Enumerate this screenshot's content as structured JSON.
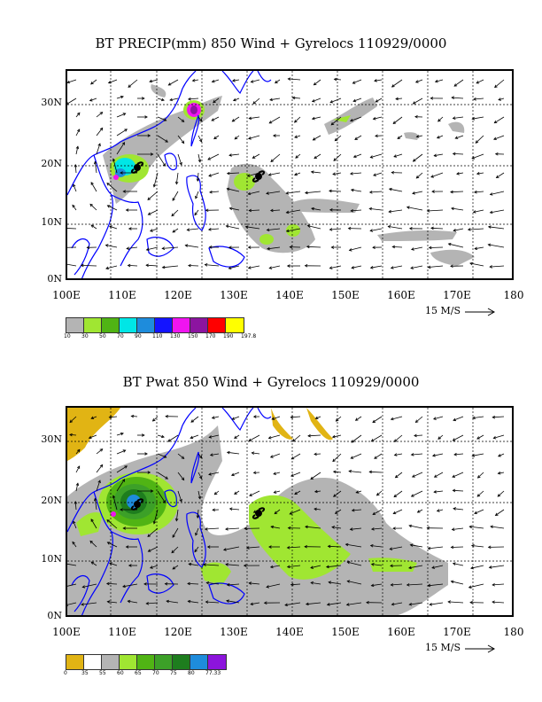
{
  "panels": [
    {
      "title": "BT PRECIP(mm) 850 Wind + Gyrelocs 110929/0000",
      "y_labels": [
        "30N",
        "20N",
        "10N",
        "0N"
      ],
      "x_labels": [
        "100E",
        "110E",
        "120E",
        "130E",
        "140E",
        "150E",
        "160E",
        "170E",
        "180"
      ],
      "scale_label": "15 M/S",
      "legend_colors": [
        "#b4b4b4",
        "#a0e632",
        "#50b414",
        "#00e6e6",
        "#1e8cdc",
        "#1414ff",
        "#f014f0",
        "#8c14a0",
        "#ff0000",
        "#ffff00"
      ],
      "legend_labels": [
        "10",
        "30",
        "50",
        "70",
        "90",
        "110",
        "130",
        "150",
        "170",
        "190",
        "197.8"
      ]
    },
    {
      "title": "BT Pwat 850 Wind + Gyrelocs 110929/0000",
      "y_labels": [
        "30N",
        "20N",
        "10N",
        "0N"
      ],
      "x_labels": [
        "100E",
        "110E",
        "120E",
        "130E",
        "140E",
        "150E",
        "160E",
        "170E",
        "180"
      ],
      "scale_label": "15 M/S",
      "legend_colors": [
        "#e1b414",
        "#ffffff",
        "#b4b4b4",
        "#a0e632",
        "#50b414",
        "#3ca028",
        "#1e7d1e",
        "#1e8cdc",
        "#8c14dc"
      ],
      "legend_labels": [
        "0",
        "35",
        "55",
        "60",
        "65",
        "70",
        "75",
        "80",
        "77.33"
      ]
    }
  ],
  "colors": {
    "coast": "#0000ff",
    "grid": "#000000",
    "grey": "#b4b4b4"
  }
}
